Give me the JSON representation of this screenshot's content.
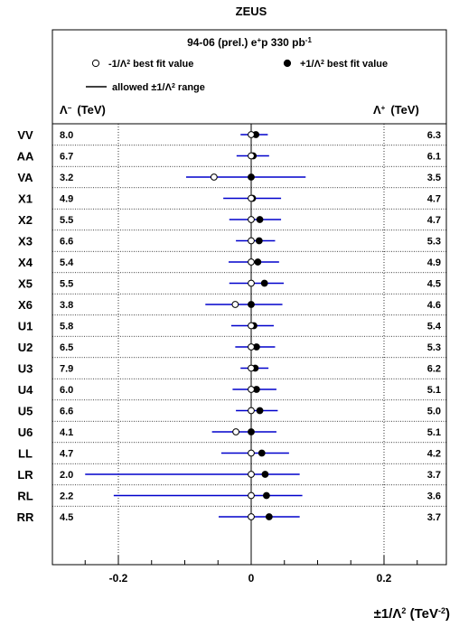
{
  "chart_data": {
    "type": "scatter",
    "title": "ZEUS",
    "subtitle": "94-06 (prel.) e+p 330 pb-1",
    "legend": {
      "minus_label": "-1/Λ² best fit value",
      "plus_label": "+1/Λ² best fit value",
      "range_label": "allowed ±1/Λ² range",
      "placement": "top"
    },
    "left_column_header": "Λ⁻ (TeV)",
    "right_column_header": "Λ⁺ (TeV)",
    "xlabel": "±1/Λ² (TeV⁻²)",
    "xlim": [
      -0.25,
      0.25
    ],
    "xticks": [
      "-0.2",
      "0",
      "0.2"
    ],
    "grid": "dotted vertical at ±0.2, dotted row separators",
    "colors": {
      "range_line": "#0000cc",
      "zero_line": "#000000"
    },
    "categories": [
      "VV",
      "AA",
      "VA",
      "X1",
      "X2",
      "X3",
      "X4",
      "X5",
      "X6",
      "U1",
      "U2",
      "U3",
      "U4",
      "U5",
      "U6",
      "LL",
      "LR",
      "RL",
      "RR"
    ],
    "lambda_minus": [
      "8.0",
      "6.7",
      "3.2",
      "4.9",
      "5.5",
      "6.6",
      "5.4",
      "5.5",
      "3.8",
      "5.8",
      "6.5",
      "7.9",
      "6.0",
      "6.6",
      "4.1",
      "4.7",
      "2.0",
      "2.2",
      "4.5"
    ],
    "lambda_plus": [
      "6.3",
      "6.1",
      "3.5",
      "4.7",
      "4.7",
      "5.3",
      "4.9",
      "4.5",
      "4.6",
      "5.4",
      "5.3",
      "6.2",
      "5.1",
      "5.0",
      "5.1",
      "4.2",
      "3.7",
      "3.6",
      "3.7"
    ],
    "minus_best_fit": [
      0,
      0,
      -0.056,
      0,
      0,
      0,
      0,
      0,
      -0.024,
      0,
      0,
      0,
      0,
      0,
      -0.023,
      0,
      0,
      0,
      0
    ],
    "plus_best_fit": [
      0.007,
      0.003,
      0,
      0.002,
      0.013,
      0.012,
      0.01,
      0.02,
      0,
      0.004,
      0.008,
      0.006,
      0.008,
      0.013,
      0,
      0.016,
      0.021,
      0.023,
      0.027
    ],
    "range_low": [
      -0.016,
      -0.022,
      -0.098,
      -0.042,
      -0.033,
      -0.023,
      -0.034,
      -0.033,
      -0.069,
      -0.03,
      -0.024,
      -0.016,
      -0.028,
      -0.023,
      -0.059,
      -0.045,
      -0.25,
      -0.207,
      -0.049
    ],
    "range_high": [
      0.025,
      0.027,
      0.082,
      0.045,
      0.045,
      0.036,
      0.042,
      0.049,
      0.047,
      0.034,
      0.036,
      0.026,
      0.038,
      0.04,
      0.038,
      0.057,
      0.073,
      0.077,
      0.073
    ]
  }
}
